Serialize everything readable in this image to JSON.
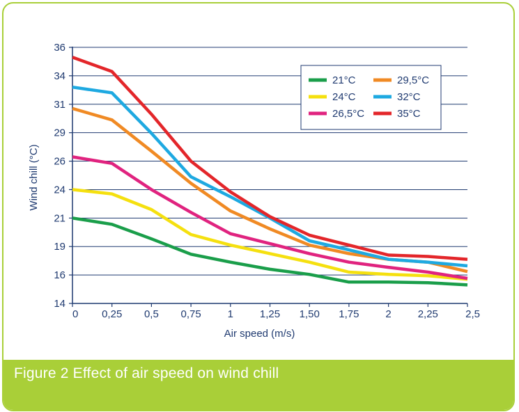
{
  "caption": "Figure 2  Effect of air speed on wind chill",
  "colors": {
    "frame": "#a9cf38",
    "axis": "#1f3a70",
    "grid": "#1f3a70",
    "caption_text": "#ffffff"
  },
  "chart_data": {
    "type": "line",
    "xlabel": "Air speed (m/s)",
    "ylabel": "Wind chill (°C)",
    "x_tick_labels": [
      "0",
      "0,25",
      "0,5",
      "0,75",
      "1",
      "1,25",
      "1,50",
      "1,75",
      "2",
      "2,25",
      "2,5"
    ],
    "y_tick_labels": [
      "14",
      "16",
      "19",
      "21",
      "24",
      "26",
      "29",
      "31",
      "34",
      "36"
    ],
    "xlim": [
      0,
      2.5
    ],
    "ylim_index": [
      0,
      9
    ],
    "grid": true,
    "legend_position": "top-right",
    "x": [
      0,
      0.25,
      0.5,
      0.75,
      1,
      1.25,
      1.5,
      1.75,
      2,
      2.25,
      2.5
    ],
    "series": [
      {
        "name": "21°C",
        "color": "#1a9e4a",
        "y": [
          3.0,
          2.78,
          2.27,
          1.73,
          1.45,
          1.2,
          1.02,
          0.75,
          0.75,
          0.73,
          0.65
        ]
      },
      {
        "name": "24°C",
        "color": "#f5e00f",
        "y": [
          4.0,
          3.85,
          3.3,
          2.42,
          2.05,
          1.75,
          1.45,
          1.1,
          1.02,
          0.97,
          0.85
        ]
      },
      {
        "name": "26,5°C",
        "color": "#e0237f",
        "y": [
          5.15,
          4.92,
          4.0,
          3.2,
          2.45,
          2.1,
          1.75,
          1.45,
          1.27,
          1.1,
          0.88
        ]
      },
      {
        "name": "29,5°C",
        "color": "#f08a24",
        "y": [
          6.85,
          6.45,
          5.35,
          4.22,
          3.25,
          2.62,
          2.05,
          1.75,
          1.55,
          1.45,
          1.12
        ]
      },
      {
        "name": "32°C",
        "color": "#1ea9e1",
        "y": [
          7.6,
          7.4,
          5.98,
          4.45,
          3.75,
          3.0,
          2.2,
          1.88,
          1.55,
          1.45,
          1.32
        ]
      },
      {
        "name": "35°C",
        "color": "#e3262a",
        "y": [
          8.65,
          8.15,
          6.65,
          5.0,
          3.92,
          3.05,
          2.4,
          2.05,
          1.7,
          1.65,
          1.55
        ]
      }
    ]
  }
}
